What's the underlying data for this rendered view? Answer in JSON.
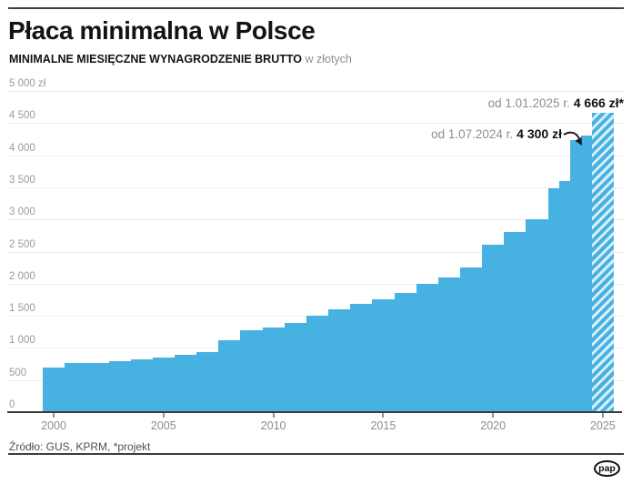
{
  "header": {
    "title": "Płaca minimalna w Polsce",
    "subtitle_bold": "MINIMALNE MIESIĘCZNE WYNAGRODZENIE BRUTTO",
    "subtitle_rest": "w złotych"
  },
  "chart_data": {
    "type": "bar",
    "title": "Płaca minimalna w Polsce",
    "subtitle": "Minimalne miesięczne wynagrodzenie brutto w złotych",
    "unit": "zł",
    "ylim": [
      0,
      5000
    ],
    "grid": true,
    "x_range": [
      2000,
      2026
    ],
    "y_ticks": [
      {
        "value": 5000,
        "label": "5 000 zł"
      },
      {
        "value": 4500,
        "label": "4 500"
      },
      {
        "value": 4000,
        "label": "4 000"
      },
      {
        "value": 3500,
        "label": "3 500"
      },
      {
        "value": 3000,
        "label": "3 000"
      },
      {
        "value": 2500,
        "label": "2 500"
      },
      {
        "value": 2000,
        "label": "2 000"
      },
      {
        "value": 1500,
        "label": "1 500"
      },
      {
        "value": 1000,
        "label": "1 000"
      },
      {
        "value": 500,
        "label": "500"
      },
      {
        "value": 0,
        "label": "0"
      }
    ],
    "x_ticks": [
      "2000",
      "2005",
      "2010",
      "2015",
      "2020",
      "2025"
    ],
    "segments": [
      {
        "from": 2000,
        "to": 2001,
        "value": 700,
        "hatched": false
      },
      {
        "from": 2001,
        "to": 2002,
        "value": 760,
        "hatched": false
      },
      {
        "from": 2002,
        "to": 2003,
        "value": 760,
        "hatched": false
      },
      {
        "from": 2003,
        "to": 2004,
        "value": 800,
        "hatched": false
      },
      {
        "from": 2004,
        "to": 2005,
        "value": 824,
        "hatched": false
      },
      {
        "from": 2005,
        "to": 2006,
        "value": 849,
        "hatched": false
      },
      {
        "from": 2006,
        "to": 2007,
        "value": 899,
        "hatched": false
      },
      {
        "from": 2007,
        "to": 2008,
        "value": 936,
        "hatched": false
      },
      {
        "from": 2008,
        "to": 2009,
        "value": 1126,
        "hatched": false
      },
      {
        "from": 2009,
        "to": 2010,
        "value": 1276,
        "hatched": false
      },
      {
        "from": 2010,
        "to": 2011,
        "value": 1317,
        "hatched": false
      },
      {
        "from": 2011,
        "to": 2012,
        "value": 1386,
        "hatched": false
      },
      {
        "from": 2012,
        "to": 2013,
        "value": 1500,
        "hatched": false
      },
      {
        "from": 2013,
        "to": 2014,
        "value": 1600,
        "hatched": false
      },
      {
        "from": 2014,
        "to": 2015,
        "value": 1680,
        "hatched": false
      },
      {
        "from": 2015,
        "to": 2016,
        "value": 1750,
        "hatched": false
      },
      {
        "from": 2016,
        "to": 2017,
        "value": 1850,
        "hatched": false
      },
      {
        "from": 2017,
        "to": 2018,
        "value": 2000,
        "hatched": false
      },
      {
        "from": 2018,
        "to": 2019,
        "value": 2100,
        "hatched": false
      },
      {
        "from": 2019,
        "to": 2020,
        "value": 2250,
        "hatched": false
      },
      {
        "from": 2020,
        "to": 2021,
        "value": 2600,
        "hatched": false
      },
      {
        "from": 2021,
        "to": 2022,
        "value": 2800,
        "hatched": false
      },
      {
        "from": 2022,
        "to": 2023,
        "value": 3010,
        "hatched": false
      },
      {
        "from": 2023,
        "to": 2023.5,
        "value": 3490,
        "hatched": false
      },
      {
        "from": 2023.5,
        "to": 2024,
        "value": 3600,
        "hatched": false
      },
      {
        "from": 2024,
        "to": 2024.5,
        "value": 4242,
        "hatched": false
      },
      {
        "from": 2024.5,
        "to": 2025,
        "value": 4300,
        "hatched": false
      },
      {
        "from": 2025,
        "to": 2026,
        "value": 4666,
        "hatched": true
      }
    ],
    "annotations": [
      {
        "prefix": "od 1.01.2025 r.",
        "value_label": "4 666 zł*",
        "value": 4666
      },
      {
        "prefix": "od 1.07.2024 r.",
        "value_label": "4 300 zł",
        "value": 4300
      }
    ]
  },
  "colors": {
    "bar": "#47b2e2",
    "hatch_light": "#d9effa",
    "gridline": "#ececec",
    "axis": "#3c3c3c",
    "accent_text": "#111111",
    "muted_text": "#8d8d8d"
  },
  "footer": {
    "source": "Źródło: GUS, KPRM, *projekt",
    "logo_text": "pap"
  }
}
